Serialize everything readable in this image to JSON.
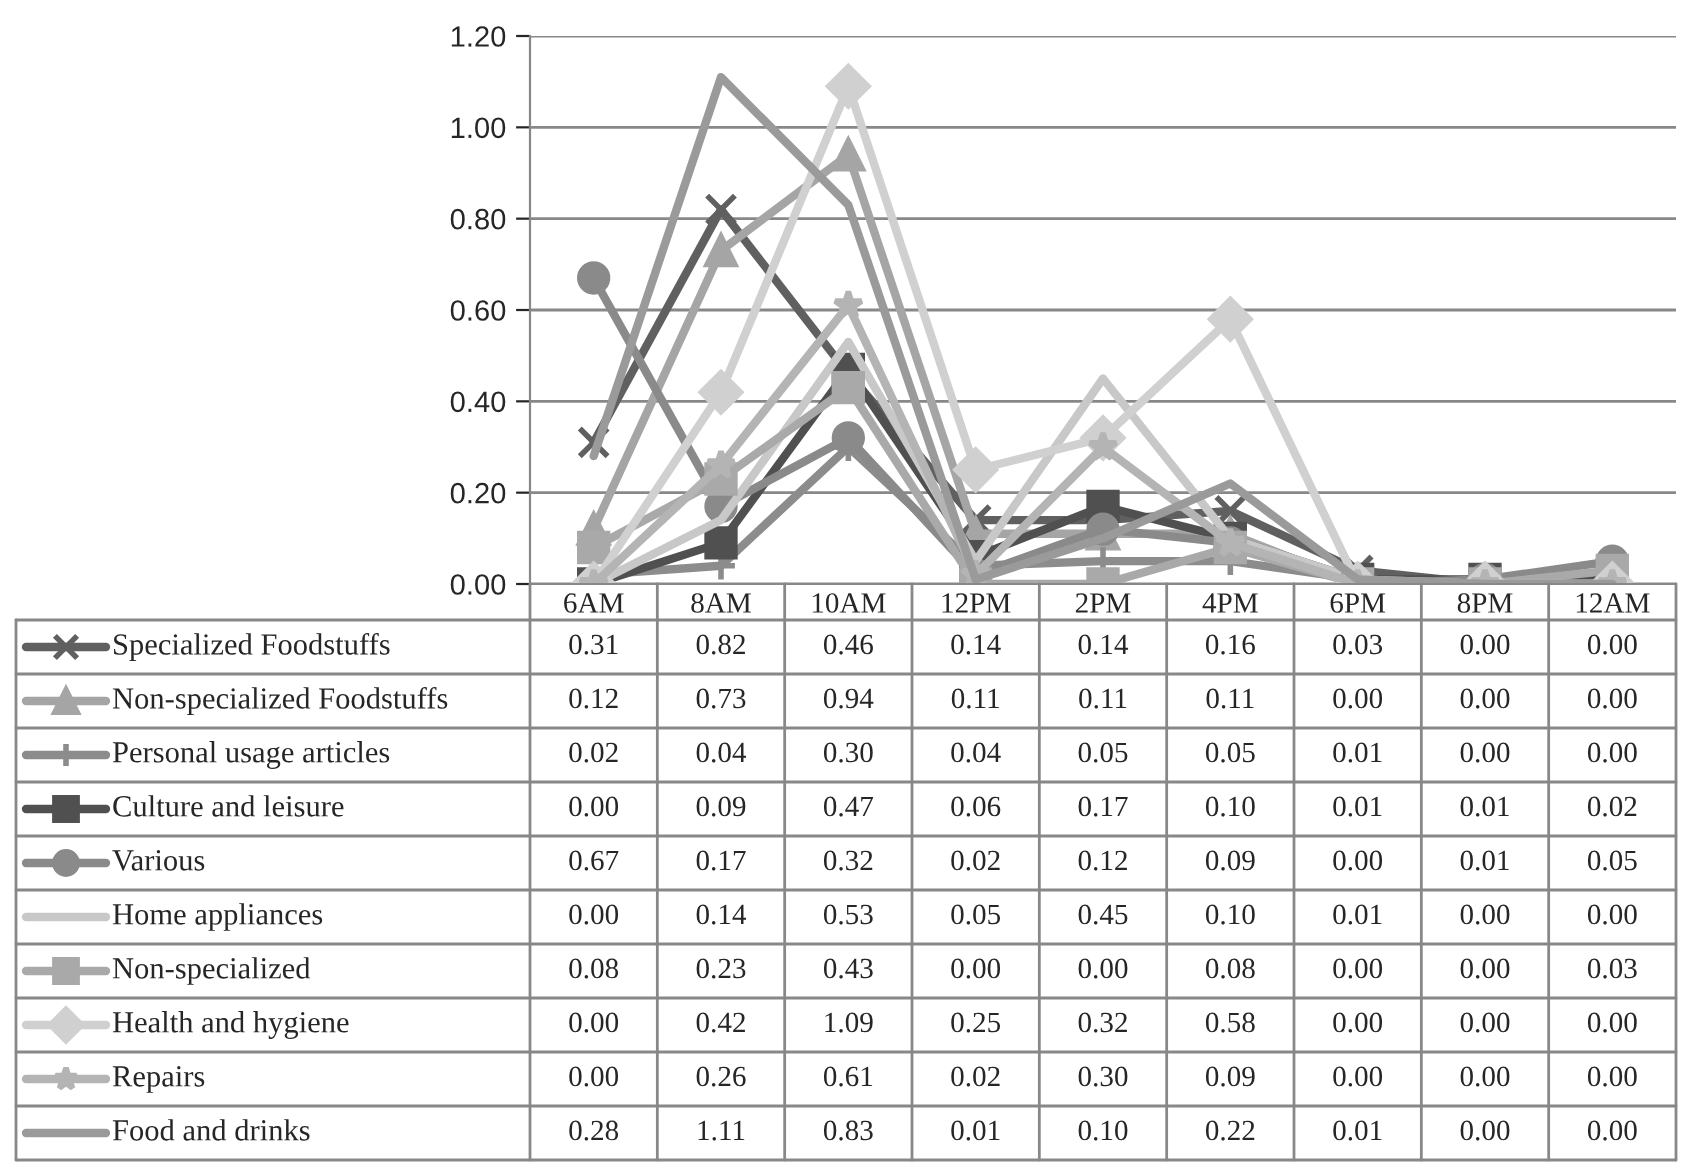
{
  "chart_data": {
    "type": "line",
    "categories": [
      "6AM",
      "8AM",
      "10AM",
      "12PM",
      "2PM",
      "4PM",
      "6PM",
      "8PM",
      "12AM"
    ],
    "ylim": [
      0,
      1.2
    ],
    "yticks": [
      {
        "value": 0,
        "label": "0.00"
      },
      {
        "value": 0.2,
        "label": "0.20"
      },
      {
        "value": 0.4,
        "label": "0.40"
      },
      {
        "value": 0.6,
        "label": "0.60"
      },
      {
        "value": 0.8,
        "label": "0.80"
      },
      {
        "value": 1.0,
        "label": "1.00"
      },
      {
        "value": 1.2,
        "label": "1.20"
      }
    ],
    "grid": "y",
    "legend": "bottom",
    "series": [
      {
        "name": "Specialized Foodstuffs",
        "color": "#606060",
        "marker": "cross",
        "values": [
          0.31,
          0.82,
          0.46,
          0.14,
          0.14,
          0.16,
          0.03,
          0.0,
          0.0
        ],
        "value_labels": [
          "0.31",
          "0.82",
          "0.46",
          "0.14",
          "0.14",
          "0.16",
          "0.03",
          "0.00",
          "0.00"
        ]
      },
      {
        "name": "Non-specialized Foodstuffs",
        "color": "#a5a5a5",
        "marker": "triangle",
        "values": [
          0.12,
          0.73,
          0.94,
          0.11,
          0.11,
          0.11,
          0.0,
          0.0,
          0.0
        ],
        "value_labels": [
          "0.12",
          "0.73",
          "0.94",
          "0.11",
          "0.11",
          "0.11",
          "0.00",
          "0.00",
          "0.00"
        ]
      },
      {
        "name": "Personal usage articles",
        "color": "#8c8c8c",
        "marker": "plus",
        "values": [
          0.02,
          0.04,
          0.3,
          0.04,
          0.05,
          0.05,
          0.01,
          0.0,
          0.0
        ],
        "value_labels": [
          "0.02",
          "0.04",
          "0.30",
          "0.04",
          "0.05",
          "0.05",
          "0.01",
          "0.00",
          "0.00"
        ]
      },
      {
        "name": "Culture and leisure",
        "color": "#505050",
        "marker": "square",
        "values": [
          0.0,
          0.09,
          0.47,
          0.06,
          0.17,
          0.1,
          0.01,
          0.01,
          0.02
        ],
        "value_labels": [
          "0.00",
          "0.09",
          "0.47",
          "0.06",
          "0.17",
          "0.10",
          "0.01",
          "0.01",
          "0.02"
        ]
      },
      {
        "name": "Various",
        "color": "#8a8a8a",
        "marker": "circle",
        "values": [
          0.67,
          0.17,
          0.32,
          0.02,
          0.12,
          0.09,
          0.0,
          0.01,
          0.05
        ],
        "value_labels": [
          "0.67",
          "0.17",
          "0.32",
          "0.02",
          "0.12",
          "0.09",
          "0.00",
          "0.01",
          "0.05"
        ]
      },
      {
        "name": "Home appliances",
        "color": "#c8c8c8",
        "marker": "none",
        "values": [
          0.0,
          0.14,
          0.53,
          0.05,
          0.45,
          0.1,
          0.01,
          0.0,
          0.0
        ],
        "value_labels": [
          "0.00",
          "0.14",
          "0.53",
          "0.05",
          "0.45",
          "0.10",
          "0.01",
          "0.00",
          "0.00"
        ]
      },
      {
        "name": "Non-specialized",
        "color": "#a9a9a9",
        "marker": "square",
        "values": [
          0.08,
          0.23,
          0.43,
          0.0,
          0.0,
          0.08,
          0.0,
          0.0,
          0.03
        ],
        "value_labels": [
          "0.08",
          "0.23",
          "0.43",
          "0.00",
          "0.00",
          "0.08",
          "0.00",
          "0.00",
          "0.03"
        ]
      },
      {
        "name": "Health and hygiene",
        "color": "#d0d0d0",
        "marker": "diamond",
        "values": [
          0.0,
          0.42,
          1.09,
          0.25,
          0.32,
          0.58,
          0.0,
          0.0,
          0.0
        ],
        "value_labels": [
          "0.00",
          "0.42",
          "1.09",
          "0.25",
          "0.32",
          "0.58",
          "0.00",
          "0.00",
          "0.00"
        ]
      },
      {
        "name": "Repairs",
        "color": "#b4b4b4",
        "marker": "star",
        "values": [
          0.0,
          0.26,
          0.61,
          0.02,
          0.3,
          0.09,
          0.0,
          0.0,
          0.0
        ],
        "value_labels": [
          "0.00",
          "0.26",
          "0.61",
          "0.02",
          "0.30",
          "0.09",
          "0.00",
          "0.00",
          "0.00"
        ]
      },
      {
        "name": "Food and drinks",
        "color": "#9a9a9a",
        "marker": "none",
        "values": [
          0.28,
          1.11,
          0.83,
          0.01,
          0.1,
          0.22,
          0.01,
          0.0,
          0.0
        ],
        "value_labels": [
          "0.28",
          "1.11",
          "0.83",
          "0.01",
          "0.10",
          "0.22",
          "0.01",
          "0.00",
          "0.00"
        ]
      }
    ]
  }
}
